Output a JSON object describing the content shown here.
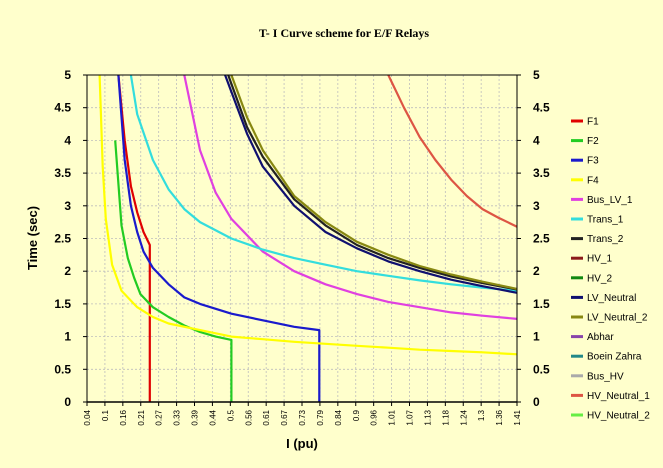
{
  "chart_data": {
    "type": "line",
    "title": "T- I Curve scheme for E/F Relays",
    "xlabel": "I (pu)",
    "ylabel": "Time (sec)",
    "xlim": [
      0.04,
      1.41
    ],
    "ylim": [
      0,
      5
    ],
    "grid": true,
    "legend_position": "right",
    "x_tick_labels": [
      "0.04",
      "0.1",
      "0.16",
      "0.21",
      "0.27",
      "0.33",
      "0.39",
      "0.44",
      "0.5",
      "0.56",
      "0.61",
      "0.67",
      "0.73",
      "0.79",
      "0.84",
      "0.9",
      "0.96",
      "1.01",
      "1.07",
      "1.13",
      "1.18",
      "1.24",
      "1.3",
      "1.36",
      "1.41"
    ],
    "y_tick_labels": [
      "0",
      "0.5",
      "1",
      "1.5",
      "2",
      "2.5",
      "3",
      "3.5",
      "4",
      "4.5",
      "5"
    ],
    "series": [
      {
        "name": "F1",
        "color": "#e00000",
        "x": [
          0.14,
          0.16,
          0.18,
          0.2,
          0.22,
          0.24,
          0.24,
          0.24
        ],
        "y": [
          5,
          4.0,
          3.3,
          2.9,
          2.6,
          2.4,
          2.35,
          0
        ]
      },
      {
        "name": "F2",
        "color": "#22cc22",
        "x": [
          0.13,
          0.15,
          0.17,
          0.19,
          0.21,
          0.25,
          0.3,
          0.35,
          0.4,
          0.45,
          0.5,
          0.5
        ],
        "y": [
          4,
          2.7,
          2.2,
          1.9,
          1.65,
          1.45,
          1.3,
          1.17,
          1.07,
          1.0,
          0.95,
          0
        ]
      },
      {
        "name": "F3",
        "color": "#1a1acc",
        "x": [
          0.14,
          0.16,
          0.18,
          0.2,
          0.22,
          0.25,
          0.3,
          0.35,
          0.4,
          0.5,
          0.6,
          0.7,
          0.78,
          0.78
        ],
        "y": [
          5,
          3.7,
          3.0,
          2.6,
          2.3,
          2.05,
          1.8,
          1.6,
          1.5,
          1.35,
          1.25,
          1.15,
          1.1,
          0
        ]
      },
      {
        "name": "F4",
        "color": "#ffff00",
        "x": [
          0.08,
          0.09,
          0.1,
          0.12,
          0.15,
          0.2,
          0.25,
          0.3,
          0.4,
          0.5,
          0.6,
          0.7,
          0.8,
          0.9,
          1.0,
          1.1,
          1.2,
          1.3,
          1.41
        ],
        "y": [
          5,
          3.6,
          2.8,
          2.1,
          1.7,
          1.45,
          1.3,
          1.2,
          1.1,
          1.0,
          0.96,
          0.92,
          0.89,
          0.86,
          0.83,
          0.8,
          0.78,
          0.76,
          0.73
        ]
      },
      {
        "name": "Bus_LV_1",
        "color": "#e040e0",
        "x": [
          0.35,
          0.4,
          0.45,
          0.5,
          0.6,
          0.7,
          0.8,
          0.9,
          1.0,
          1.1,
          1.2,
          1.3,
          1.41
        ],
        "y": [
          5,
          3.85,
          3.2,
          2.8,
          2.3,
          2.0,
          1.8,
          1.65,
          1.53,
          1.45,
          1.37,
          1.32,
          1.27
        ]
      },
      {
        "name": "Trans_1",
        "color": "#33dddd",
        "x": [
          0.18,
          0.2,
          0.25,
          0.3,
          0.35,
          0.4,
          0.5,
          0.6,
          0.7,
          0.8,
          0.9,
          1.0,
          1.1,
          1.2,
          1.3,
          1.41
        ],
        "y": [
          5,
          4.4,
          3.7,
          3.25,
          2.95,
          2.75,
          2.5,
          2.33,
          2.2,
          2.1,
          2.0,
          1.93,
          1.86,
          1.8,
          1.75,
          1.7
        ]
      },
      {
        "name": "Trans_2",
        "color": "#222222",
        "x": [
          0.49,
          0.55,
          0.6,
          0.7,
          0.8,
          0.9,
          1.0,
          1.1,
          1.2,
          1.3,
          1.41
        ],
        "y": [
          5,
          4.2,
          3.75,
          3.1,
          2.7,
          2.4,
          2.2,
          2.05,
          1.92,
          1.82,
          1.72
        ]
      },
      {
        "name": "HV_1",
        "color": "#8b1a1a",
        "x": [],
        "y": []
      },
      {
        "name": "HV_2",
        "color": "#118811",
        "x": [],
        "y": []
      },
      {
        "name": "LV_Neutral",
        "color": "#101070",
        "x": [
          0.48,
          0.55,
          0.6,
          0.7,
          0.8,
          0.9,
          1.0,
          1.1,
          1.2,
          1.3,
          1.41
        ],
        "y": [
          5,
          4.1,
          3.6,
          3.0,
          2.6,
          2.35,
          2.15,
          2.0,
          1.87,
          1.77,
          1.67
        ]
      },
      {
        "name": "LV_Neutral_2",
        "color": "#888811",
        "x": [
          0.5,
          0.55,
          0.6,
          0.7,
          0.8,
          0.9,
          1.0,
          1.1,
          1.2,
          1.3,
          1.41
        ],
        "y": [
          5,
          4.35,
          3.85,
          3.15,
          2.75,
          2.45,
          2.25,
          2.08,
          1.95,
          1.84,
          1.73
        ]
      },
      {
        "name": "Abhar",
        "color": "#8844aa",
        "x": [],
        "y": []
      },
      {
        "name": "Boein Zahra",
        "color": "#228888",
        "x": [],
        "y": []
      },
      {
        "name": "Bus_HV",
        "color": "#aaaaaa",
        "x": [],
        "y": []
      },
      {
        "name": "HV_Neutral_1",
        "color": "#dd5544",
        "x": [
          1.0,
          1.05,
          1.1,
          1.15,
          1.2,
          1.25,
          1.3,
          1.35,
          1.41
        ],
        "y": [
          5,
          4.5,
          4.05,
          3.7,
          3.4,
          3.15,
          2.95,
          2.82,
          2.68
        ]
      },
      {
        "name": "HV_Neutral_2",
        "color": "#66ee44",
        "x": [],
        "y": []
      }
    ]
  }
}
